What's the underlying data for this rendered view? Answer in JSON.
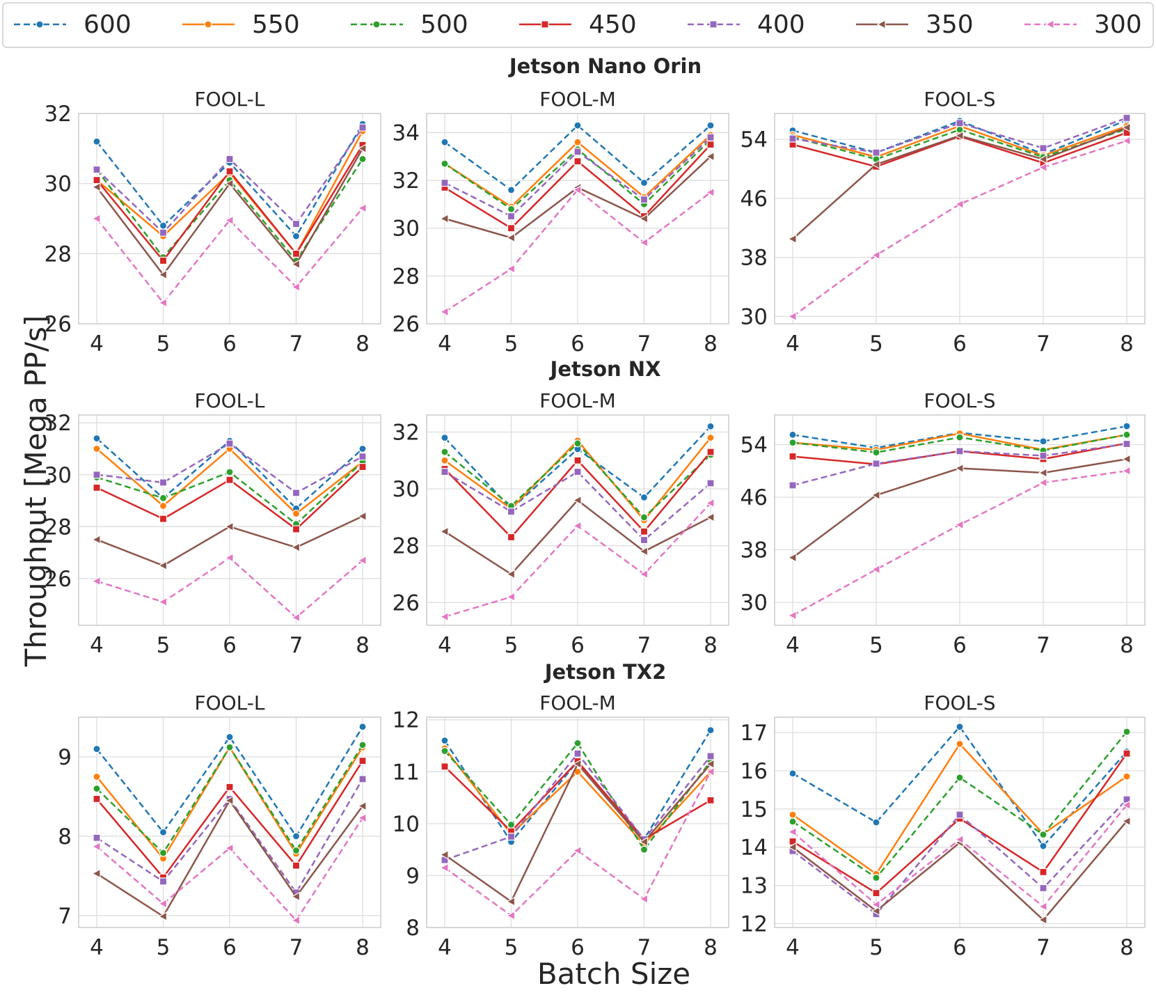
{
  "figure": {
    "ylabel": "Throughput [Mega PP/s]",
    "xlabel": "Batch Size"
  },
  "legend": {
    "placement": "top",
    "entries": [
      {
        "name": "600",
        "color": "#1f77b4",
        "dash": "dashed",
        "marker": "circle"
      },
      {
        "name": "550",
        "color": "#ff7f0e",
        "dash": "solid",
        "marker": "circle"
      },
      {
        "name": "500",
        "color": "#2ca02c",
        "dash": "dashed",
        "marker": "circle"
      },
      {
        "name": "450",
        "color": "#d62728",
        "dash": "solid",
        "marker": "square"
      },
      {
        "name": "400",
        "color": "#9467bd",
        "dash": "dashed",
        "marker": "square"
      },
      {
        "name": "350",
        "color": "#8c564b",
        "dash": "solid",
        "marker": "triangle-left"
      },
      {
        "name": "300",
        "color": "#e377c2",
        "dash": "dashed",
        "marker": "triangle-left"
      }
    ]
  },
  "row_titles": [
    "Jetson Nano Orin",
    "Jetson NX",
    "Jetson TX2"
  ],
  "chart_data": [
    {
      "type": "line",
      "device": "Jetson Nano Orin",
      "title": "FOOL-L",
      "x": [
        4,
        5,
        6,
        7,
        8
      ],
      "ylim": [
        26,
        32
      ],
      "yticks": [
        26,
        28,
        30,
        32
      ],
      "grid": true,
      "series": [
        {
          "name": "600",
          "values": [
            31.2,
            28.8,
            30.6,
            28.5,
            31.7
          ]
        },
        {
          "name": "550",
          "values": [
            30.1,
            28.5,
            30.3,
            28.0,
            31.5
          ]
        },
        {
          "name": "500",
          "values": [
            30.4,
            27.9,
            30.1,
            27.8,
            30.7
          ]
        },
        {
          "name": "450",
          "values": [
            30.1,
            27.8,
            30.35,
            28.0,
            31.1
          ]
        },
        {
          "name": "400",
          "values": [
            30.4,
            28.6,
            30.7,
            28.85,
            31.6
          ]
        },
        {
          "name": "350",
          "values": [
            29.9,
            27.4,
            30.0,
            27.7,
            31.0
          ]
        },
        {
          "name": "300",
          "values": [
            29.0,
            26.6,
            28.95,
            27.05,
            29.3
          ]
        }
      ]
    },
    {
      "type": "line",
      "device": "Jetson Nano Orin",
      "title": "FOOL-M",
      "x": [
        4,
        5,
        6,
        7,
        8
      ],
      "ylim": [
        26,
        34.8
      ],
      "yticks": [
        26,
        28,
        30,
        32,
        34
      ],
      "grid": true,
      "series": [
        {
          "name": "600",
          "values": [
            33.6,
            31.6,
            34.3,
            31.9,
            34.3
          ]
        },
        {
          "name": "550",
          "values": [
            32.7,
            30.9,
            33.6,
            31.3,
            33.9
          ]
        },
        {
          "name": "500",
          "values": [
            32.7,
            30.8,
            33.3,
            31.0,
            33.7
          ]
        },
        {
          "name": "450",
          "values": [
            31.7,
            30.0,
            32.8,
            30.5,
            33.5
          ]
        },
        {
          "name": "400",
          "values": [
            31.9,
            30.5,
            33.2,
            31.2,
            33.8
          ]
        },
        {
          "name": "350",
          "values": [
            30.4,
            29.6,
            31.7,
            30.4,
            33.0
          ]
        },
        {
          "name": "300",
          "values": [
            26.5,
            28.3,
            31.6,
            29.4,
            31.5
          ]
        }
      ]
    },
    {
      "type": "line",
      "device": "Jetson Nano Orin",
      "title": "FOOL-S",
      "x": [
        4,
        5,
        6,
        7,
        8
      ],
      "ylim": [
        29,
        57.5
      ],
      "yticks": [
        30,
        38,
        46,
        54
      ],
      "grid": true,
      "series": [
        {
          "name": "600",
          "values": [
            55.2,
            52.2,
            56.5,
            52.0,
            56.6
          ]
        },
        {
          "name": "550",
          "values": [
            54.6,
            51.6,
            55.8,
            51.8,
            55.8
          ]
        },
        {
          "name": "500",
          "values": [
            54.3,
            51.3,
            55.3,
            51.6,
            55.4
          ]
        },
        {
          "name": "450",
          "values": [
            53.3,
            50.3,
            54.4,
            50.8,
            54.9
          ]
        },
        {
          "name": "400",
          "values": [
            54.1,
            52.2,
            56.2,
            52.8,
            56.9
          ]
        },
        {
          "name": "350",
          "values": [
            40.5,
            50.6,
            54.5,
            51.3,
            55.6
          ]
        },
        {
          "name": "300",
          "values": [
            30.0,
            38.3,
            45.2,
            50.2,
            53.8
          ]
        }
      ]
    },
    {
      "type": "line",
      "device": "Jetson NX",
      "title": "FOOL-L",
      "x": [
        4,
        5,
        6,
        7,
        8
      ],
      "ylim": [
        24.2,
        32.3
      ],
      "yticks": [
        26,
        28,
        30,
        32
      ],
      "grid": true,
      "series": [
        {
          "name": "600",
          "values": [
            31.4,
            29.1,
            31.3,
            28.7,
            31.0
          ]
        },
        {
          "name": "550",
          "values": [
            31.0,
            28.8,
            31.0,
            28.5,
            30.5
          ]
        },
        {
          "name": "500",
          "values": [
            29.9,
            29.1,
            30.1,
            28.1,
            30.5
          ]
        },
        {
          "name": "450",
          "values": [
            29.5,
            28.3,
            29.8,
            27.9,
            30.3
          ]
        },
        {
          "name": "400",
          "values": [
            30.0,
            29.7,
            31.2,
            29.3,
            30.7
          ]
        },
        {
          "name": "350",
          "values": [
            27.5,
            26.5,
            28.0,
            27.2,
            28.4
          ]
        },
        {
          "name": "300",
          "values": [
            25.9,
            25.1,
            26.8,
            24.5,
            26.7
          ]
        }
      ]
    },
    {
      "type": "line",
      "device": "Jetson NX",
      "title": "FOOL-M",
      "x": [
        4,
        5,
        6,
        7,
        8
      ],
      "ylim": [
        25.2,
        32.6
      ],
      "yticks": [
        26,
        28,
        30,
        32
      ],
      "grid": true,
      "series": [
        {
          "name": "600",
          "values": [
            31.8,
            29.3,
            31.4,
            29.7,
            32.2
          ]
        },
        {
          "name": "550",
          "values": [
            31.0,
            29.3,
            31.7,
            28.9,
            31.8
          ]
        },
        {
          "name": "500",
          "values": [
            31.3,
            29.4,
            31.6,
            29.0,
            31.2
          ]
        },
        {
          "name": "450",
          "values": [
            30.7,
            28.3,
            31.0,
            28.5,
            31.3
          ]
        },
        {
          "name": "400",
          "values": [
            30.6,
            29.2,
            30.6,
            28.2,
            30.2
          ]
        },
        {
          "name": "350",
          "values": [
            28.5,
            27.0,
            29.6,
            27.8,
            29.0
          ]
        },
        {
          "name": "300",
          "values": [
            25.5,
            26.2,
            28.7,
            27.0,
            29.5
          ]
        }
      ]
    },
    {
      "type": "line",
      "device": "Jetson NX",
      "title": "FOOL-S",
      "x": [
        4,
        5,
        6,
        7,
        8
      ],
      "ylim": [
        26.5,
        58.5
      ],
      "yticks": [
        30,
        38,
        46,
        54
      ],
      "grid": true,
      "series": [
        {
          "name": "600",
          "values": [
            55.5,
            53.5,
            55.8,
            54.5,
            56.8
          ]
        },
        {
          "name": "550",
          "values": [
            54.3,
            53.2,
            55.7,
            53.2,
            55.5
          ]
        },
        {
          "name": "500",
          "values": [
            54.3,
            52.8,
            55.1,
            53.1,
            55.5
          ]
        },
        {
          "name": "450",
          "values": [
            52.2,
            51.0,
            53.0,
            51.8,
            54.2
          ]
        },
        {
          "name": "400",
          "values": [
            47.8,
            51.1,
            53.0,
            52.3,
            54.1
          ]
        },
        {
          "name": "350",
          "values": [
            36.8,
            46.3,
            50.4,
            49.7,
            51.8
          ]
        },
        {
          "name": "300",
          "values": [
            28.0,
            35.0,
            41.8,
            48.2,
            50.0
          ]
        }
      ]
    },
    {
      "type": "line",
      "device": "Jetson TX2",
      "title": "FOOL-L",
      "x": [
        4,
        5,
        6,
        7,
        8
      ],
      "ylim": [
        6.85,
        9.5
      ],
      "yticks": [
        7,
        8,
        9
      ],
      "grid": true,
      "series": [
        {
          "name": "600",
          "values": [
            9.1,
            8.05,
            9.25,
            8.0,
            9.38
          ]
        },
        {
          "name": "550",
          "values": [
            8.75,
            7.72,
            9.12,
            7.78,
            9.12
          ]
        },
        {
          "name": "500",
          "values": [
            8.6,
            7.79,
            9.12,
            7.82,
            9.15
          ]
        },
        {
          "name": "450",
          "values": [
            8.47,
            7.48,
            8.62,
            7.63,
            8.95
          ]
        },
        {
          "name": "400",
          "values": [
            7.98,
            7.43,
            8.47,
            7.29,
            8.72
          ]
        },
        {
          "name": "350",
          "values": [
            7.53,
            6.99,
            8.45,
            7.24,
            8.38
          ]
        },
        {
          "name": "300",
          "values": [
            7.87,
            7.15,
            7.85,
            6.94,
            8.23
          ]
        }
      ]
    },
    {
      "type": "line",
      "device": "Jetson TX2",
      "title": "FOOL-M",
      "x": [
        4,
        5,
        6,
        7,
        8
      ],
      "ylim": [
        8.0,
        12.05
      ],
      "yticks": [
        8,
        9,
        10,
        11,
        12
      ],
      "grid": true,
      "series": [
        {
          "name": "600",
          "values": [
            11.6,
            9.65,
            11.2,
            9.7,
            11.8
          ]
        },
        {
          "name": "550",
          "values": [
            11.45,
            9.8,
            11.0,
            9.6,
            11.0
          ]
        },
        {
          "name": "500",
          "values": [
            11.4,
            9.98,
            11.55,
            9.5,
            11.2
          ]
        },
        {
          "name": "450",
          "values": [
            11.1,
            9.85,
            11.2,
            9.7,
            10.45
          ]
        },
        {
          "name": "400",
          "values": [
            9.3,
            9.75,
            11.35,
            9.7,
            11.3
          ]
        },
        {
          "name": "350",
          "values": [
            9.4,
            8.5,
            11.15,
            9.65,
            11.15
          ]
        },
        {
          "name": "300",
          "values": [
            9.15,
            8.23,
            9.48,
            8.55,
            11.0
          ]
        }
      ]
    },
    {
      "type": "line",
      "device": "Jetson TX2",
      "title": "FOOL-S",
      "x": [
        4,
        5,
        6,
        7,
        8
      ],
      "ylim": [
        11.9,
        17.4
      ],
      "yticks": [
        12,
        13,
        14,
        15,
        16,
        17
      ],
      "grid": true,
      "series": [
        {
          "name": "600",
          "values": [
            15.93,
            14.65,
            17.15,
            14.03,
            16.5
          ]
        },
        {
          "name": "550",
          "values": [
            14.85,
            13.3,
            16.7,
            14.35,
            15.85
          ]
        },
        {
          "name": "500",
          "values": [
            14.67,
            13.2,
            15.82,
            14.33,
            17.02
          ]
        },
        {
          "name": "450",
          "values": [
            14.15,
            12.8,
            14.75,
            13.35,
            16.45
          ]
        },
        {
          "name": "400",
          "values": [
            13.9,
            12.25,
            14.85,
            12.93,
            15.25
          ]
        },
        {
          "name": "350",
          "values": [
            14.0,
            12.33,
            14.12,
            12.1,
            14.68
          ]
        },
        {
          "name": "300",
          "values": [
            14.4,
            12.5,
            14.2,
            12.45,
            15.1
          ]
        }
      ]
    }
  ]
}
